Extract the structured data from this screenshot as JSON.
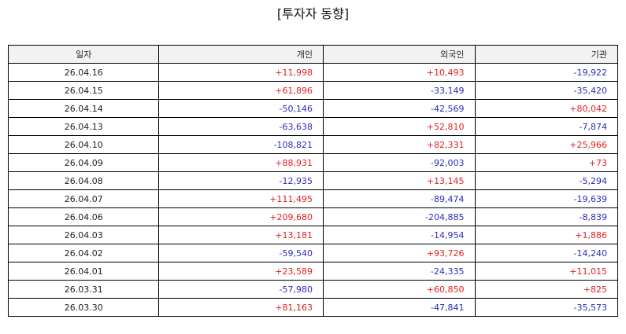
{
  "title": "[투자자 동향]",
  "colors": {
    "positive": "#e02020",
    "negative": "#2b2bb8",
    "header_bg": "#f2f2f2"
  },
  "table": {
    "headers": [
      "일자",
      "개인",
      "외국인",
      "기관"
    ],
    "rows": [
      [
        "26.04.16",
        "+11,998",
        "+10,493",
        "-19,922"
      ],
      [
        "26.04.15",
        "+61,896",
        "-33,149",
        "-35,420"
      ],
      [
        "26.04.14",
        "-50,146",
        "-42,569",
        "+80,042"
      ],
      [
        "26.04.13",
        "-63,638",
        "+52,810",
        "-7,874"
      ],
      [
        "26.04.10",
        "-108,821",
        "+82,331",
        "+25,966"
      ],
      [
        "26.04.09",
        "+88,931",
        "-92,003",
        "+73"
      ],
      [
        "26.04.08",
        "-12,935",
        "+13,145",
        "-5,294"
      ],
      [
        "26.04.07",
        "+111,495",
        "-89,474",
        "-19,639"
      ],
      [
        "26.04.06",
        "+209,680",
        "-204,885",
        "-8,839"
      ],
      [
        "26.04.03",
        "+13,181",
        "-14,954",
        "+1,886"
      ],
      [
        "26.04.02",
        "-59,540",
        "+93,726",
        "-14,240"
      ],
      [
        "26.04.01",
        "+23,589",
        "-24,335",
        "+11,015"
      ],
      [
        "26.03.31",
        "-57,980",
        "+60,850",
        "+825"
      ],
      [
        "26.03.30",
        "+81,163",
        "-47,841",
        "-35,573"
      ]
    ]
  }
}
